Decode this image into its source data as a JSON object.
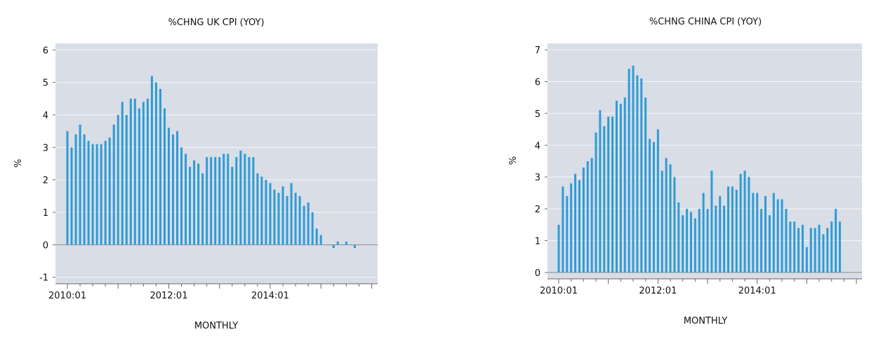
{
  "chart_data": [
    {
      "type": "bar",
      "title": "%CHNG UK CPI (YOY)",
      "xlabel": "MONTHLY",
      "ylabel": "%",
      "ylim": [
        -1.2,
        6.2
      ],
      "yticks": [
        -1,
        0,
        1,
        2,
        3,
        4,
        5,
        6
      ],
      "xticks": [
        "2010:01",
        "2012:01",
        "2014:01"
      ],
      "start": "2010:01",
      "grid": true,
      "bar_color": "#2e9bd6",
      "background_color": "#d8dde6",
      "values": [
        3.5,
        3.0,
        3.4,
        3.7,
        3.4,
        3.2,
        3.1,
        3.1,
        3.1,
        3.2,
        3.3,
        3.7,
        4.0,
        4.4,
        4.0,
        4.5,
        4.5,
        4.2,
        4.4,
        4.5,
        5.2,
        5.0,
        4.8,
        4.2,
        3.6,
        3.4,
        3.5,
        3.0,
        2.8,
        2.4,
        2.6,
        2.5,
        2.2,
        2.7,
        2.7,
        2.7,
        2.7,
        2.8,
        2.8,
        2.4,
        2.7,
        2.9,
        2.8,
        2.7,
        2.7,
        2.2,
        2.1,
        2.0,
        1.9,
        1.7,
        1.6,
        1.8,
        1.5,
        1.9,
        1.6,
        1.5,
        1.2,
        1.3,
        1.0,
        0.5,
        0.3,
        0.0,
        0.0,
        -0.1,
        0.1,
        0.0,
        0.1,
        0.0,
        -0.1
      ]
    },
    {
      "type": "bar",
      "title": "%CHNG CHINA CPI (YOY)",
      "xlabel": "MONTHLY",
      "ylabel": "%",
      "ylim": [
        -0.2,
        7.2
      ],
      "yticks": [
        0,
        1,
        2,
        3,
        4,
        5,
        6,
        7
      ],
      "xticks": [
        "2010:01",
        "2012:01",
        "2014:01"
      ],
      "start": "2010:01",
      "grid": true,
      "bar_color": "#2e9bd6",
      "background_color": "#d8dde6",
      "values": [
        1.5,
        2.7,
        2.4,
        2.8,
        3.1,
        2.9,
        3.3,
        3.5,
        3.6,
        4.4,
        5.1,
        4.6,
        4.9,
        4.9,
        5.4,
        5.3,
        5.5,
        6.4,
        6.5,
        6.2,
        6.1,
        5.5,
        4.2,
        4.1,
        4.5,
        3.2,
        3.6,
        3.4,
        3.0,
        2.2,
        1.8,
        2.0,
        1.9,
        1.7,
        2.0,
        2.5,
        2.0,
        3.2,
        2.1,
        2.4,
        2.1,
        2.7,
        2.7,
        2.6,
        3.1,
        3.2,
        3.0,
        2.5,
        2.5,
        2.0,
        2.4,
        1.8,
        2.5,
        2.3,
        2.3,
        2.0,
        1.6,
        1.6,
        1.4,
        1.5,
        0.8,
        1.4,
        1.4,
        1.5,
        1.2,
        1.4,
        1.6,
        2.0,
        1.6
      ]
    }
  ]
}
